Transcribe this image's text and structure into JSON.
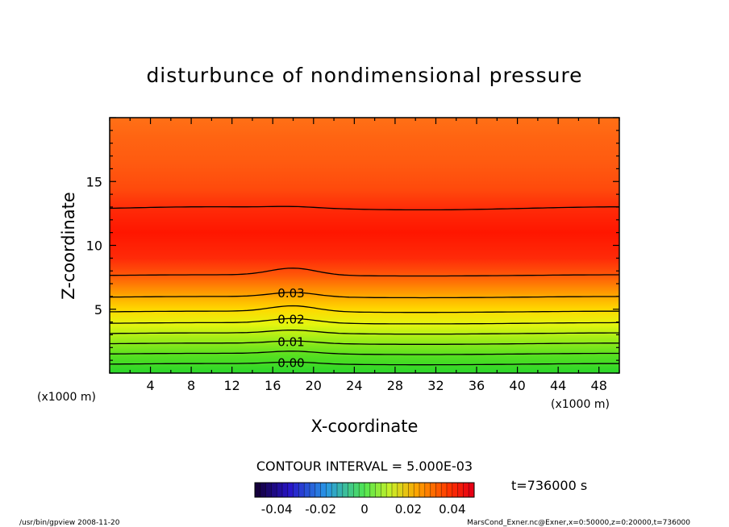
{
  "chart_data": {
    "type": "contour",
    "title": "disturbunce of nondimensional pressure",
    "xlabel": "X-coordinate",
    "ylabel": "Z-coordinate",
    "x_unit": "(x1000 m)",
    "y_unit": "(x1000 m)",
    "xlim": [
      0,
      50
    ],
    "ylim": [
      0,
      20
    ],
    "xticks": [
      4,
      8,
      12,
      16,
      20,
      24,
      28,
      32,
      36,
      40,
      44,
      48
    ],
    "yticks": [
      5,
      10,
      15
    ],
    "contour_interval_text": "CONTOUR INTERVAL = 5.000E-03",
    "contour_interval": 0.005,
    "contour_levels": [
      {
        "value": 0.0,
        "z": 0.7,
        "bump": 0.15,
        "label": "0.00"
      },
      {
        "value": 0.005,
        "z": 1.5,
        "bump": 0.2,
        "label": ""
      },
      {
        "value": 0.01,
        "z": 2.3,
        "bump": 0.2,
        "label": "0.01"
      },
      {
        "value": 0.015,
        "z": 3.1,
        "bump": 0.25,
        "label": ""
      },
      {
        "value": 0.02,
        "z": 3.9,
        "bump": 0.35,
        "label": "0.02"
      },
      {
        "value": 0.025,
        "z": 4.8,
        "bump": 0.45,
        "label": ""
      },
      {
        "value": 0.03,
        "z": 5.95,
        "bump": 0.35,
        "label": "0.03"
      },
      {
        "value": 0.035,
        "z": 7.65,
        "bump": 0.55,
        "label": ""
      },
      {
        "value": 0.035,
        "z": 12.9,
        "bump": 0.1,
        "label": ""
      }
    ],
    "colorbar": {
      "min": -0.05,
      "max": 0.05,
      "ticks": [
        "-0.04",
        "-0.02",
        "0",
        "0.02",
        "0.04"
      ],
      "tick_values": [
        -0.04,
        -0.02,
        0,
        0.02,
        0.04
      ]
    },
    "time_label": "t=736000 s",
    "footer_left": "/usr/bin/gpview   2008-11-20",
    "footer_right": "MarsCond_Exner.nc@Exner,x=0:50000,z=0:20000,t=736000"
  }
}
